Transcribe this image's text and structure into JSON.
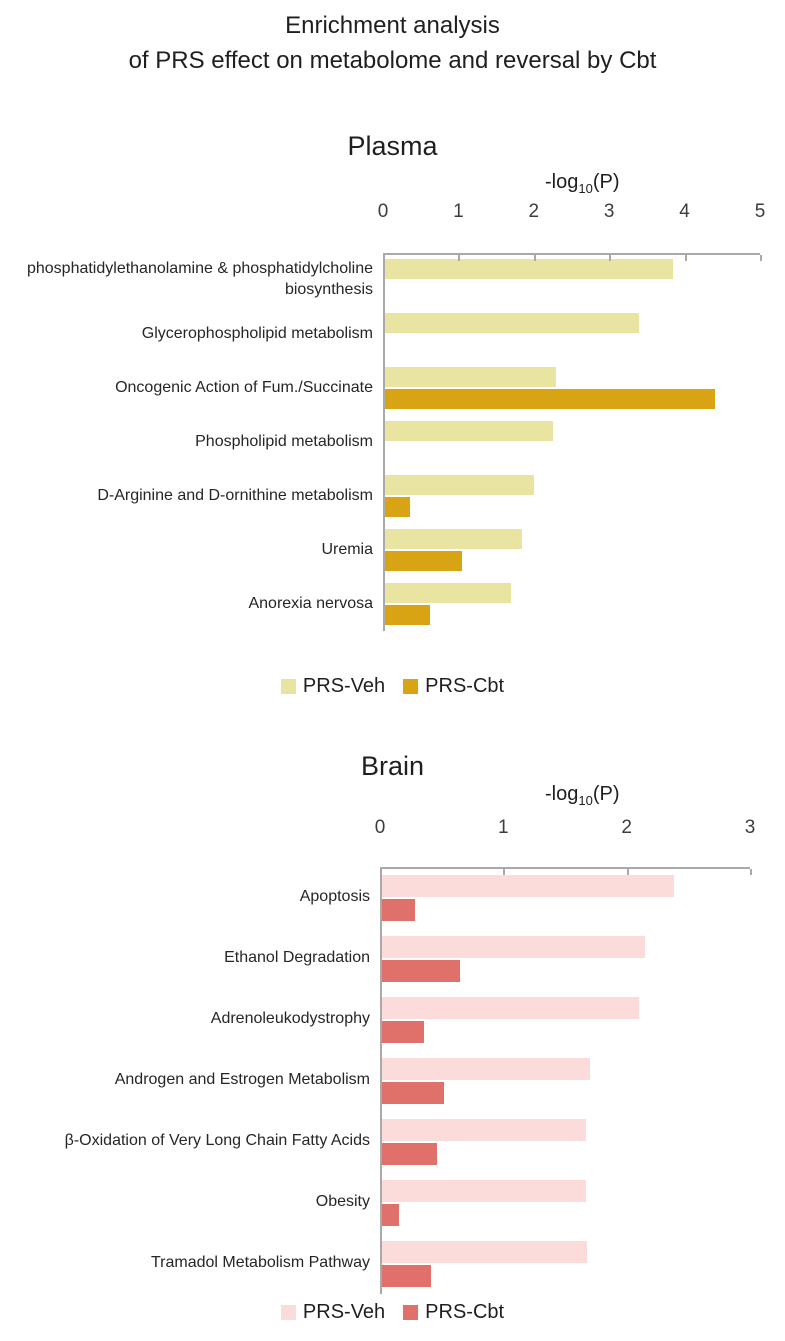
{
  "title": {
    "line1": "Enrichment analysis",
    "line2": "of PRS effect on metabolome and reversal by Cbt"
  },
  "chart_data": [
    {
      "type": "bar",
      "orientation": "horizontal",
      "title": "Plasma",
      "axis_label": "-log10(P)",
      "axis_label_parts": {
        "pre": "-log",
        "sub": "10",
        "post": "(P)"
      },
      "xlim": [
        0,
        5
      ],
      "ticks": [
        0,
        1,
        2,
        3,
        4,
        5
      ],
      "grid": false,
      "legend_position": "bottom",
      "colors": {
        "veh": "#e9e4a2",
        "cbt": "#d8a413"
      },
      "categories": [
        "phosphatidylethanolamine & phosphatidylcholine biosynthesis",
        "Glycerophospholipid metabolism",
        "Oncogenic Action of Fum./Succinate",
        "Phospholipid metabolism",
        "D-Arginine and D-ornithine metabolism",
        "Uremia",
        "Anorexia nervosa"
      ],
      "series": [
        {
          "name": "PRS-Veh",
          "values": [
            3.85,
            3.4,
            2.3,
            2.25,
            2.0,
            1.85,
            1.7
          ]
        },
        {
          "name": "PRS-Cbt",
          "values": [
            0.03,
            0,
            4.4,
            0.03,
            0.36,
            1.05,
            0.62
          ]
        }
      ]
    },
    {
      "type": "bar",
      "orientation": "horizontal",
      "title": "Brain",
      "axis_label": "-log10(P)",
      "axis_label_parts": {
        "pre": "-log",
        "sub": "10",
        "post": "(P)"
      },
      "xlim": [
        0,
        3
      ],
      "ticks": [
        0,
        1,
        2,
        3
      ],
      "grid": false,
      "legend_position": "bottom",
      "colors": {
        "veh": "#fbdcda",
        "cbt": "#e0706a"
      },
      "categories": [
        "Apoptosis",
        "Ethanol Degradation",
        "Adrenoleukodystrophy",
        "Androgen and Estrogen Metabolism",
        "β-Oxidation of Very Long Chain Fatty Acids",
        "Obesity",
        "Tramadol Metabolism Pathway"
      ],
      "series": [
        {
          "name": "PRS-Veh",
          "values": [
            2.38,
            2.15,
            2.1,
            1.7,
            1.67,
            1.67,
            1.68
          ]
        },
        {
          "name": "PRS-Cbt",
          "values": [
            0.28,
            0.65,
            0.36,
            0.52,
            0.46,
            0.15,
            0.41
          ]
        }
      ]
    }
  ]
}
